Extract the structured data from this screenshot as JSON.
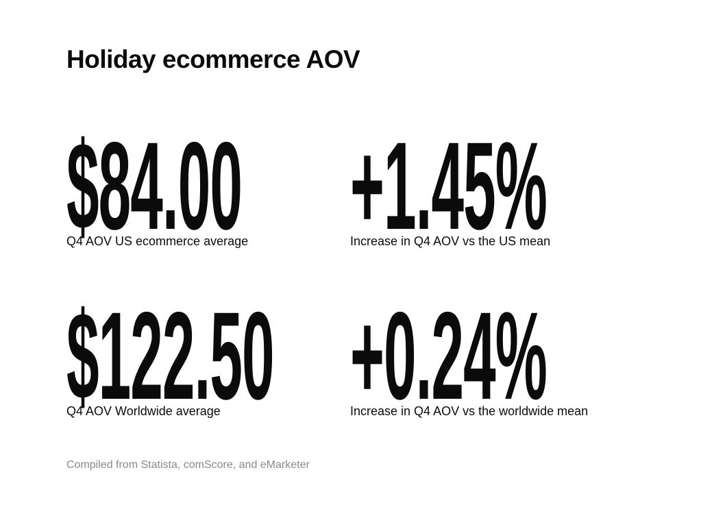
{
  "header": {
    "title": "Holiday ecommerce AOV"
  },
  "stats": [
    {
      "value": "$84.00",
      "label": "Q4 AOV US ecommerce average"
    },
    {
      "value": "+1.45%",
      "label": "Increase in Q4 AOV vs the US mean"
    },
    {
      "value": "$122.50",
      "label": "Q4 AOV Worldwide average"
    },
    {
      "value": "+0.24%",
      "label": "Increase in Q4 AOV vs the worldwide mean"
    }
  ],
  "footer": {
    "source": "Compiled from Statista, comScore, and eMarketer"
  }
}
